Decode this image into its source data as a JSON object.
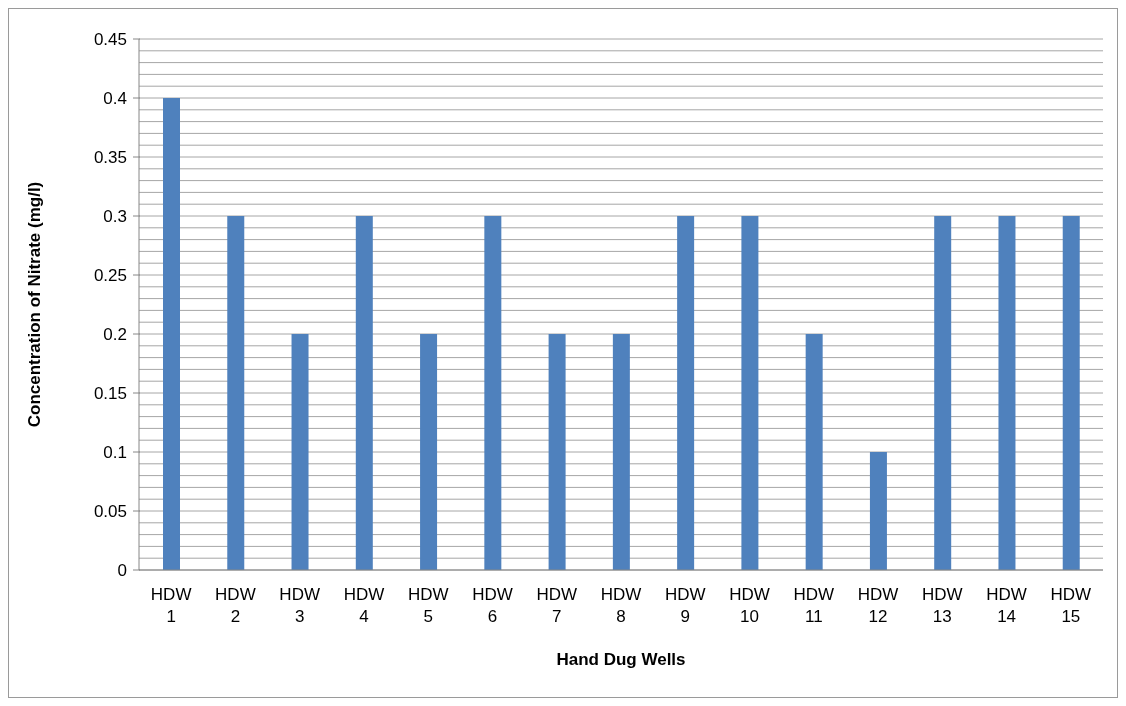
{
  "chart_data": {
    "type": "bar",
    "xlabel": "Hand Dug Wells",
    "ylabel": "Concentration of Nitrate (mg/l)",
    "categories": [
      "HDW 1",
      "HDW 2",
      "HDW 3",
      "HDW 4",
      "HDW 5",
      "HDW 6",
      "HDW 7",
      "HDW 8",
      "HDW 9",
      "HDW 10",
      "HDW 11",
      "HDW 12",
      "HDW 13",
      "HDW 14",
      "HDW 15"
    ],
    "values": [
      0.4,
      0.3,
      0.2,
      0.3,
      0.2,
      0.3,
      0.2,
      0.2,
      0.3,
      0.3,
      0.2,
      0.1,
      0.3,
      0.3,
      0.3
    ],
    "color": "#4f81bd",
    "ylim": [
      0,
      0.45
    ],
    "yticks": [
      0,
      {
        "value": 0.01,
        "label": null
      },
      {
        "value": 0.02,
        "label": null
      },
      {
        "value": 0.03,
        "label": null
      },
      {
        "value": 0.04,
        "label": null
      },
      0.05,
      {
        "value": 0.06,
        "label": null
      },
      {
        "value": 0.07,
        "label": null
      },
      {
        "value": 0.08,
        "label": null
      },
      {
        "value": 0.09,
        "label": null
      },
      0.1,
      {
        "value": 0.11,
        "label": null
      },
      {
        "value": 0.12,
        "label": null
      },
      {
        "value": 0.13,
        "label": null
      },
      {
        "value": 0.14,
        "label": null
      },
      0.15,
      {
        "value": 0.16,
        "label": null
      },
      {
        "value": 0.17,
        "label": null
      },
      {
        "value": 0.18,
        "label": null
      },
      {
        "value": 0.19,
        "label": null
      },
      0.2,
      {
        "value": 0.21,
        "label": null
      },
      {
        "value": 0.22,
        "label": null
      },
      {
        "value": 0.23,
        "label": null
      },
      {
        "value": 0.24,
        "label": null
      },
      0.25,
      {
        "value": 0.26,
        "label": null
      },
      {
        "value": 0.27,
        "label": null
      },
      {
        "value": 0.28,
        "label": null
      },
      {
        "value": 0.29,
        "label": null
      },
      0.3,
      {
        "value": 0.31,
        "label": null
      },
      {
        "value": 0.32,
        "label": null
      },
      {
        "value": 0.33,
        "label": null
      },
      {
        "value": 0.34,
        "label": null
      },
      0.35,
      {
        "value": 0.36,
        "label": null
      },
      {
        "value": 0.37,
        "label": null
      },
      {
        "value": 0.38,
        "label": null
      },
      {
        "value": 0.39,
        "label": null
      },
      0.4,
      {
        "value": 0.41,
        "label": null
      },
      {
        "value": 0.42,
        "label": null
      },
      {
        "value": 0.43,
        "label": null
      },
      {
        "value": 0.44,
        "label": null
      },
      0.45
    ],
    "grid": "y"
  }
}
